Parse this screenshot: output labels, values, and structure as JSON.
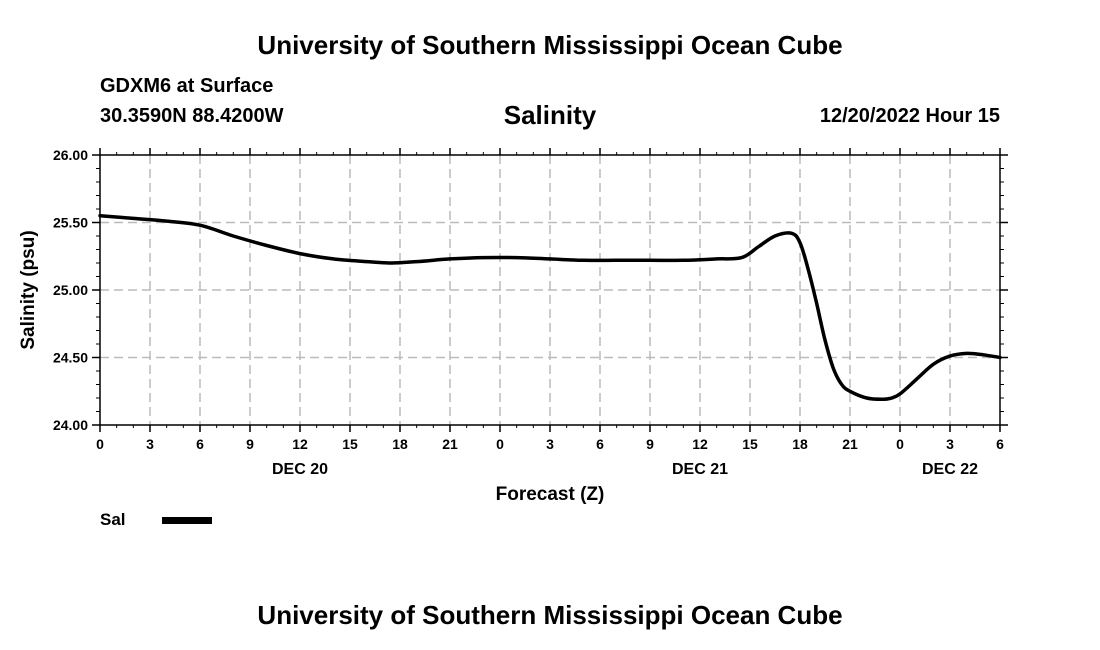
{
  "header": {
    "title_top": "University of Southern Mississippi Ocean Cube",
    "title_bottom": "University of Southern Mississippi Ocean Cube",
    "station": "GDXM6 at Surface",
    "coords": "30.3590N  88.4200W",
    "datetime": "12/20/2022 Hour 15"
  },
  "chart_data": {
    "type": "line",
    "title": "Salinity",
    "xlabel": "Forecast (Z)",
    "ylabel": "Salinity (psu)",
    "ylim": [
      24.0,
      26.0
    ],
    "xlim": [
      0,
      54
    ],
    "yticks": [
      24.0,
      24.5,
      25.0,
      25.5,
      26.0
    ],
    "ytick_labels": [
      "24.00",
      "24.50",
      "25.00",
      "25.50",
      "26.00"
    ],
    "xticks": [
      0,
      3,
      6,
      9,
      12,
      15,
      18,
      21,
      24,
      27,
      30,
      33,
      36,
      39,
      42,
      45,
      48,
      51,
      54
    ],
    "xtick_labels": [
      "0",
      "3",
      "6",
      "9",
      "12",
      "15",
      "18",
      "21",
      "0",
      "3",
      "6",
      "9",
      "12",
      "15",
      "18",
      "21",
      "0",
      "3",
      "6"
    ],
    "day_labels": [
      {
        "x": 12,
        "label": "DEC 20"
      },
      {
        "x": 36,
        "label": "DEC 21"
      },
      {
        "x": 51,
        "label": "DEC 22"
      }
    ],
    "grid": true,
    "legend": [
      {
        "name": "Sal",
        "color": "#000000"
      }
    ],
    "series": [
      {
        "name": "Sal",
        "color": "#000000",
        "x": [
          0,
          2,
          4,
          6,
          8,
          10,
          12,
          14,
          16,
          17.5,
          19,
          21,
          23,
          25,
          27,
          29,
          31,
          33,
          35,
          37,
          38.5,
          39.5,
          40.5,
          41.5,
          42,
          42.5,
          43,
          43.5,
          44,
          44.5,
          45,
          46,
          47,
          47.5,
          48,
          49,
          50,
          51,
          52,
          53,
          54
        ],
        "values": [
          25.55,
          25.53,
          25.51,
          25.48,
          25.4,
          25.33,
          25.27,
          25.23,
          25.21,
          25.2,
          25.21,
          25.23,
          25.24,
          25.24,
          25.23,
          25.22,
          25.22,
          25.22,
          25.22,
          25.23,
          25.24,
          25.32,
          25.4,
          25.42,
          25.35,
          25.15,
          24.9,
          24.63,
          24.42,
          24.3,
          24.25,
          24.2,
          24.19,
          24.2,
          24.23,
          24.34,
          24.45,
          24.51,
          24.53,
          24.52,
          24.5
        ]
      }
    ]
  }
}
